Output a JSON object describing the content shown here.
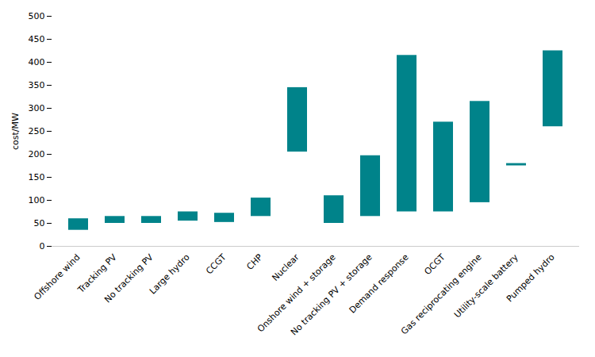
{
  "chart_data": {
    "type": "bar",
    "categories": [
      "Offshore wind",
      "Tracking PV",
      "No tracking PV",
      "Large hydro",
      "CCGT",
      "CHP",
      "Nuclear",
      "Onshore wind + storage",
      "No tracking PV + storage",
      "Demand response",
      "OCGT",
      "Gas reciprocating engine",
      "Utility-scale battery",
      "Pumped hydro"
    ],
    "low": [
      35,
      50,
      50,
      55,
      52,
      65,
      205,
      50,
      65,
      75,
      75,
      95,
      175,
      260
    ],
    "high": [
      60,
      65,
      65,
      75,
      72,
      105,
      345,
      110,
      197,
      415,
      270,
      315,
      180,
      425
    ],
    "color": "#00838a",
    "ylabel": "cost/MW",
    "ylim": [
      0,
      500
    ],
    "yticks": [
      0,
      50,
      100,
      150,
      200,
      250,
      300,
      350,
      400,
      450,
      500
    ],
    "grid": false
  }
}
